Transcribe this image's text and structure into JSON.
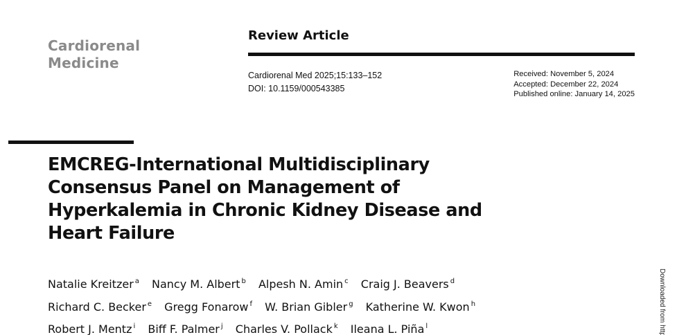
{
  "journal": {
    "name_line1": "Cardiorenal",
    "name_line2": "Medicine"
  },
  "article_type": "Review Article",
  "citation": {
    "journal_ref": "Cardiorenal Med 2025;15:133–152",
    "doi": "DOI: 10.1159/000543385"
  },
  "dates": {
    "received": "Received: November 5, 2024",
    "accepted": "Accepted: December 22, 2024",
    "published": "Published online: January 14, 2025"
  },
  "title": "EMCREG-International Multidisciplinary Consensus Panel on Management of Hyperkalemia in Chronic Kidney Disease and Heart Failure",
  "authors": [
    {
      "name": "Natalie Kreitzer",
      "aff": "a"
    },
    {
      "name": "Nancy M. Albert",
      "aff": "b"
    },
    {
      "name": "Alpesh N. Amin",
      "aff": "c"
    },
    {
      "name": "Craig J. Beavers",
      "aff": "d"
    },
    {
      "name": "Richard C. Becker",
      "aff": "e"
    },
    {
      "name": "Gregg Fonarow",
      "aff": "f"
    },
    {
      "name": "W. Brian Gibler",
      "aff": "g"
    },
    {
      "name": "Katherine W. Kwon",
      "aff": "h"
    },
    {
      "name": "Robert J. Mentz",
      "aff": "i"
    },
    {
      "name": "Biff F. Palmer",
      "aff": "j"
    },
    {
      "name": "Charles V. Pollack",
      "aff": "k"
    },
    {
      "name": "Ileana L. Piña",
      "aff": "l"
    }
  ],
  "side_note": "Downloaded from http"
}
